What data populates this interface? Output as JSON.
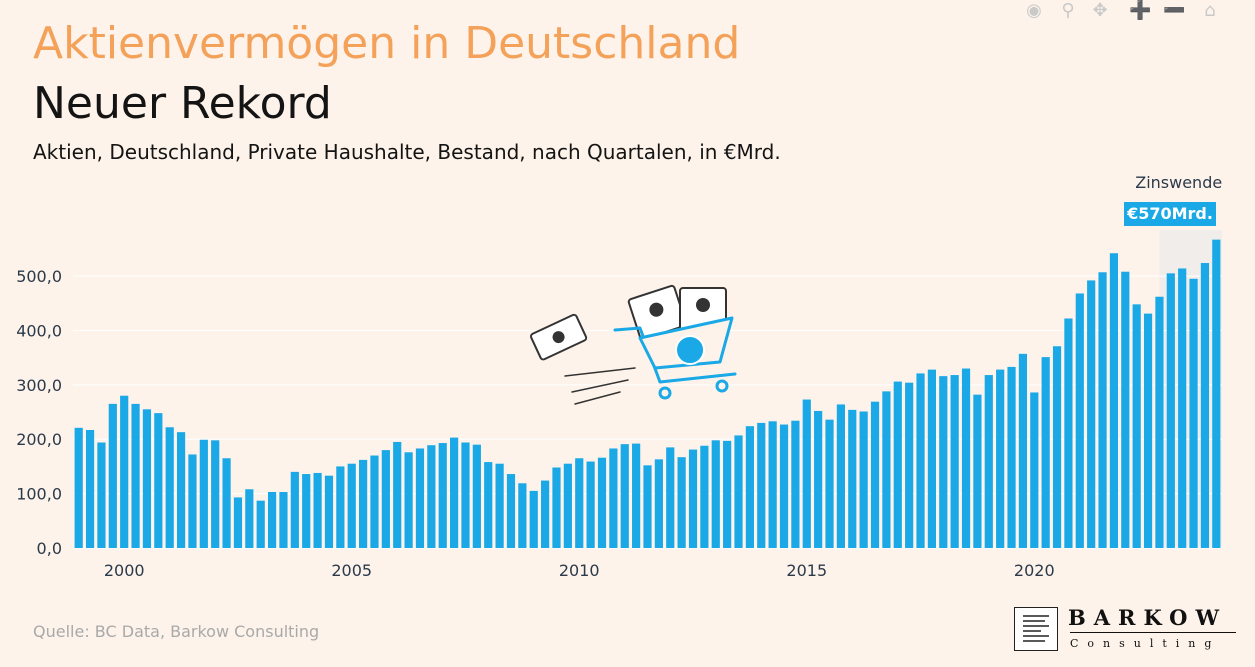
{
  "header": {
    "title": "Aktienvermögen in Deutschland",
    "subtitle": "Neuer Rekord",
    "description": "Aktien, Deutschland, Private Haushalte, Bestand, nach Quartalen, in €Mrd."
  },
  "footer": {
    "source": "Quelle: BC Data, Barkow Consulting"
  },
  "logo": {
    "name": "BARKOW",
    "sub": "Consulting"
  },
  "modebar": {
    "icons": [
      "camera-icon",
      "zoom-icon",
      "pan-icon",
      "zoom-in-icon",
      "zoom-out-icon",
      "home-icon"
    ]
  },
  "colors": {
    "bar": "#1aa9e6",
    "title": "#f4a15a",
    "background": "#fdf3ea",
    "shade": "#ebebeb",
    "label_bg": "#1aa9e6"
  },
  "chart_data": {
    "type": "bar",
    "x_start": 1999.0,
    "x_step": 0.25,
    "xlim": [
      1998.875,
      2024.125
    ],
    "ylim": [
      0,
      570
    ],
    "yticks": [
      0,
      100,
      200,
      300,
      400,
      500
    ],
    "ytick_labels": [
      "0,0",
      "100,0",
      "200,0",
      "300,0",
      "400,0",
      "500,0"
    ],
    "xticks": [
      2000,
      2005,
      2010,
      2015,
      2020
    ],
    "xtick_labels": [
      "2000",
      "2005",
      "2010",
      "2015",
      "2020"
    ],
    "grid": true,
    "values": [
      221,
      217,
      194,
      265,
      280,
      265,
      255,
      248,
      222,
      213,
      172,
      199,
      198,
      165,
      93,
      108,
      87,
      103,
      103,
      140,
      136,
      138,
      133,
      150,
      155,
      162,
      170,
      180,
      195,
      176,
      183,
      189,
      193,
      203,
      194,
      190,
      158,
      155,
      136,
      119,
      105,
      124,
      148,
      155,
      165,
      159,
      166,
      183,
      191,
      192,
      152,
      163,
      185,
      167,
      181,
      188,
      198,
      197,
      207,
      224,
      230,
      233,
      227,
      234,
      273,
      252,
      236,
      264,
      254,
      251,
      269,
      288,
      306,
      304,
      321,
      328,
      316,
      318,
      330,
      282,
      318,
      328,
      333,
      357,
      286,
      351,
      371,
      422,
      468,
      492,
      507,
      542,
      508,
      448,
      431,
      462,
      505,
      514,
      495,
      524,
      567
    ],
    "shade_region": [
      2022.75,
      2024.125
    ],
    "annotation": {
      "label": "Zinswende",
      "value_label": "€570Mrd."
    }
  }
}
